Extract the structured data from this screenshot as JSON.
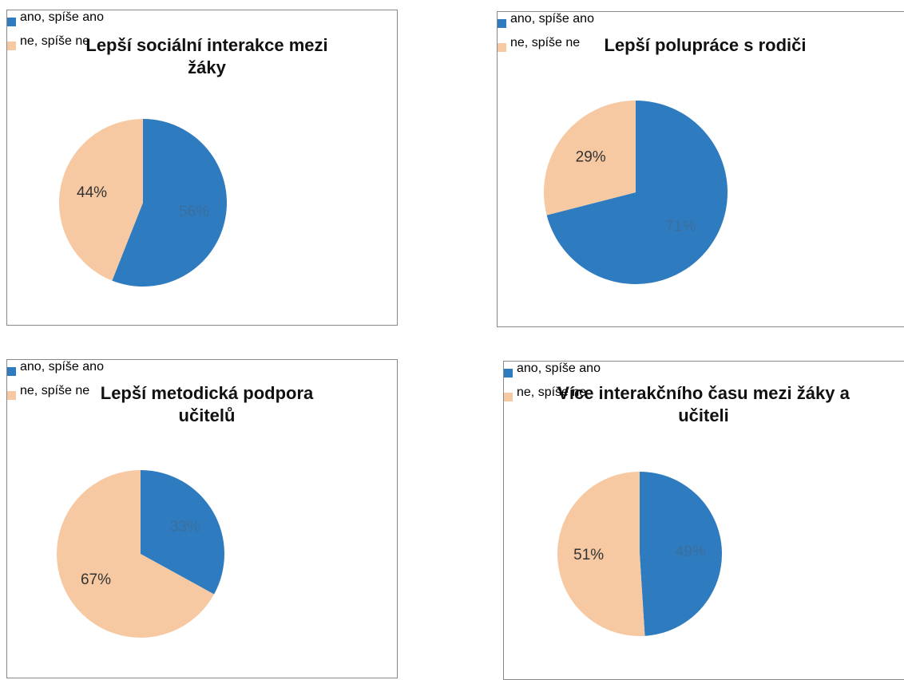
{
  "chart_data": [
    {
      "type": "pie",
      "title": "Lepší sociální interakce mezi žáky",
      "categories": [
        "ano, spíše ano",
        "ne, spíše ne"
      ],
      "values": [
        56,
        44
      ],
      "value_labels": [
        "56%",
        "44%"
      ],
      "colors": [
        "#2e7bbf",
        "#f6c9a2"
      ]
    },
    {
      "type": "pie",
      "title": "Lepší polupráce s rodiči",
      "categories": [
        "ano, spíše ano",
        "ne, spíše ne"
      ],
      "values": [
        71,
        29
      ],
      "value_labels": [
        "71%",
        "29%"
      ],
      "colors": [
        "#2e7bbf",
        "#f6c9a2"
      ]
    },
    {
      "type": "pie",
      "title": "Lepší metodická podpora učitelů",
      "categories": [
        "ano, spíše ano",
        "ne, spíše ne"
      ],
      "values": [
        33,
        67
      ],
      "value_labels": [
        "33%",
        "67%"
      ],
      "colors": [
        "#2e7bbf",
        "#f6c9a2"
      ]
    },
    {
      "type": "pie",
      "title": "Více interakčního času mezi žáky a učiteli",
      "categories": [
        "ano, spíše ano",
        "ne, spíše ne"
      ],
      "values": [
        49,
        51
      ],
      "value_labels": [
        "49%",
        "51%"
      ],
      "colors": [
        "#2e7bbf",
        "#f6c9a2"
      ]
    }
  ]
}
